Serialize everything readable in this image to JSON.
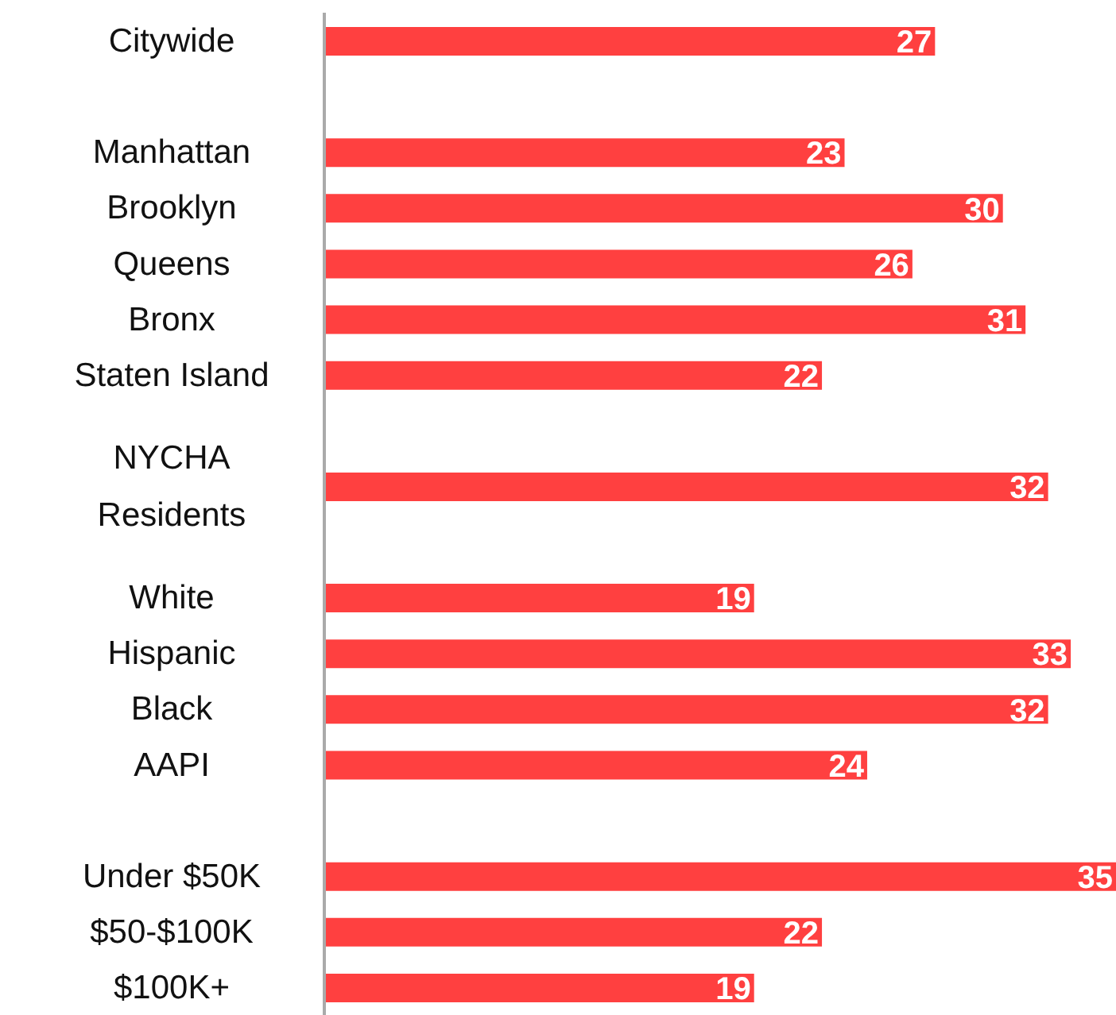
{
  "chart_data": {
    "type": "bar",
    "orientation": "horizontal",
    "categories": [
      "Citywide",
      null,
      "Manhattan",
      "Brooklyn",
      "Queens",
      "Bronx",
      "Staten Island",
      null,
      "NYCHA Residents",
      null,
      "White",
      "Hispanic",
      "Black",
      "AAPI",
      null,
      "Under $50K",
      "$50-$100K",
      "$100K+"
    ],
    "values": [
      27,
      null,
      23,
      30,
      26,
      31,
      22,
      null,
      32,
      null,
      19,
      33,
      32,
      24,
      null,
      35,
      22,
      19
    ],
    "color": "#ff4040",
    "data_labels": true,
    "grid": false,
    "legend": false
  }
}
